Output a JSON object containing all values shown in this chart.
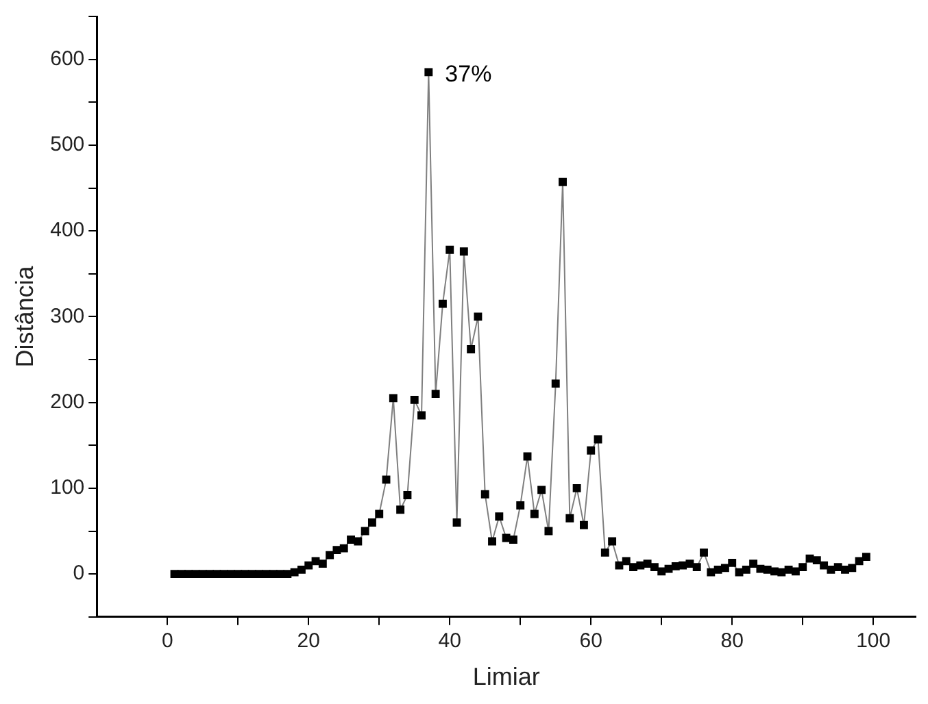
{
  "chart_data": {
    "type": "line",
    "xlabel": "Limiar",
    "ylabel": "Distância",
    "xlim": [
      -10,
      106
    ],
    "xticks": [
      0,
      {
        "value": 10,
        "label": null
      },
      20,
      {
        "value": 30,
        "label": null
      },
      40,
      {
        "value": 50,
        "label": null
      },
      60,
      {
        "value": 70,
        "label": null
      },
      80,
      {
        "value": 90,
        "label": null
      },
      100
    ],
    "ylim": [
      -50,
      650
    ],
    "yticks": [
      {
        "value": -50,
        "label": null
      },
      0,
      {
        "value": 50,
        "label": null
      },
      100,
      {
        "value": 150,
        "label": null
      },
      200,
      {
        "value": 250,
        "label": null
      },
      300,
      {
        "value": 350,
        "label": null
      },
      400,
      {
        "value": 450,
        "label": null
      },
      500,
      {
        "value": 550,
        "label": null
      },
      600,
      {
        "value": 650,
        "label": null
      }
    ],
    "x": [
      1,
      2,
      3,
      4,
      5,
      6,
      7,
      8,
      9,
      10,
      11,
      12,
      13,
      14,
      15,
      16,
      17,
      18,
      19,
      20,
      21,
      22,
      23,
      24,
      25,
      26,
      27,
      28,
      29,
      30,
      31,
      32,
      33,
      34,
      35,
      36,
      37,
      38,
      39,
      40,
      41,
      42,
      43,
      44,
      45,
      46,
      47,
      48,
      49,
      50,
      51,
      52,
      53,
      54,
      55,
      56,
      57,
      58,
      59,
      60,
      61,
      62,
      63,
      64,
      65,
      66,
      67,
      68,
      69,
      70,
      71,
      72,
      73,
      74,
      75,
      76,
      77,
      78,
      79,
      80,
      81,
      82,
      83,
      84,
      85,
      86,
      87,
      88,
      89,
      90,
      91,
      92,
      93,
      94,
      95,
      96,
      97,
      98,
      99
    ],
    "series": [
      {
        "color": "#000000",
        "values": [
          0,
          0,
          0,
          0,
          0,
          0,
          0,
          0,
          0,
          0,
          0,
          0,
          0,
          0,
          0,
          0,
          0,
          2,
          5,
          10,
          15,
          12,
          22,
          28,
          30,
          40,
          38,
          50,
          60,
          70,
          110,
          205,
          75,
          92,
          203,
          185,
          585,
          210,
          315,
          378,
          60,
          376,
          262,
          300,
          93,
          38,
          67,
          42,
          40,
          80,
          137,
          70,
          98,
          50,
          222,
          457,
          65,
          100,
          57,
          144,
          157,
          25,
          38,
          10,
          15,
          8,
          10,
          12,
          8,
          3,
          6,
          9,
          10,
          12,
          8,
          25,
          2,
          5,
          7,
          13,
          2,
          5,
          12,
          6,
          5,
          3,
          2,
          5,
          3,
          8,
          18,
          16,
          10,
          5,
          8,
          5,
          7,
          15,
          20
        ]
      }
    ],
    "marker": "square",
    "grid": false,
    "legend": false,
    "annotations": [
      {
        "text": "37%",
        "x": 37,
        "y": 585
      }
    ]
  }
}
